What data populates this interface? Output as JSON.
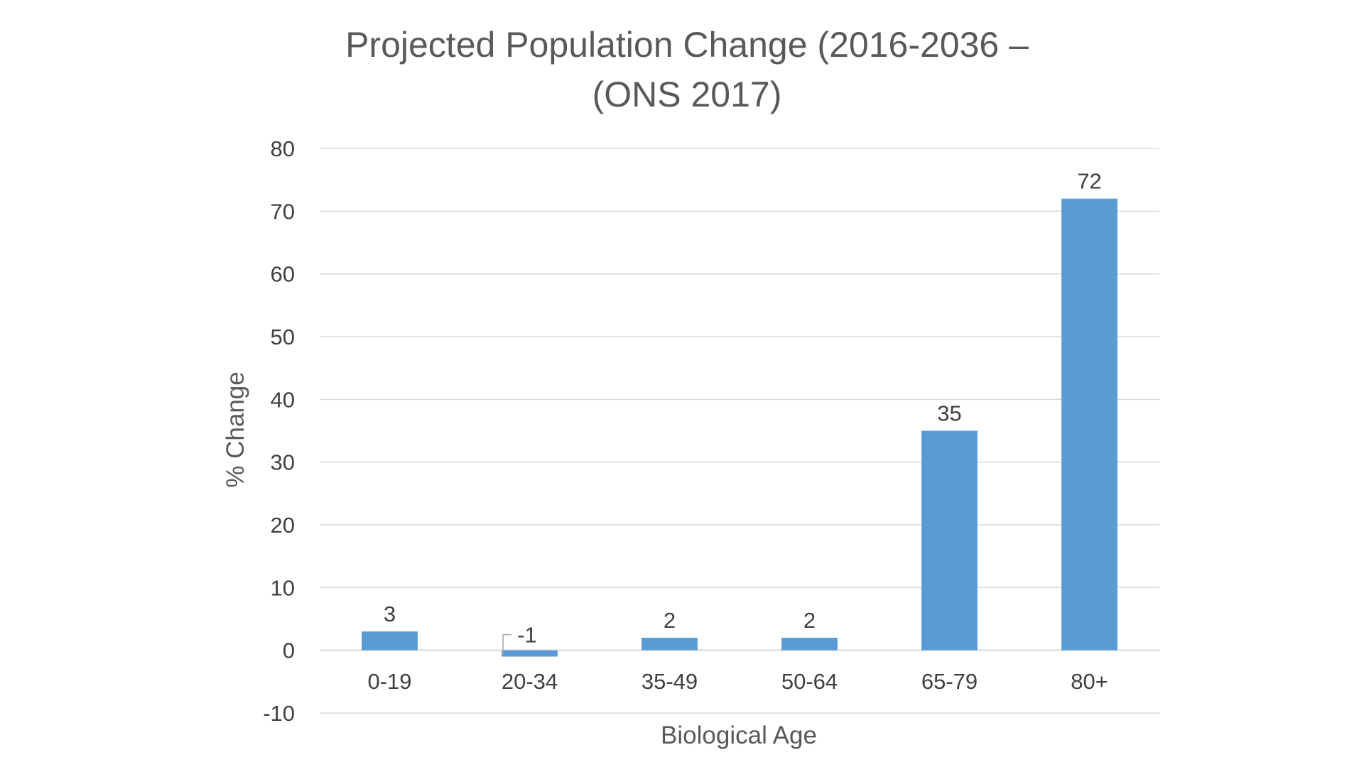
{
  "chart_data": {
    "type": "bar",
    "title_lines": [
      "Projected Population Change (2016-2036 –",
      "(ONS 2017)"
    ],
    "xlabel": "Biological Age",
    "ylabel": "% Change",
    "categories": [
      "0-19",
      "20-34",
      "35-49",
      "50-64",
      "65-79",
      "80+"
    ],
    "values": [
      3,
      -1,
      2,
      2,
      35,
      72
    ],
    "data_labels": [
      "3",
      "-1",
      "2",
      "2",
      "35",
      "72"
    ],
    "ylim": [
      -10,
      80
    ],
    "yticks": [
      -10,
      0,
      10,
      20,
      30,
      40,
      50,
      60,
      70,
      80
    ],
    "ytick_labels": [
      "-10",
      "0",
      "10",
      "20",
      "30",
      "40",
      "50",
      "60",
      "70",
      "80"
    ],
    "grid": true,
    "legend": "none",
    "bar_color": "#5B9BD5",
    "grid_color": "#D9D9D9"
  }
}
